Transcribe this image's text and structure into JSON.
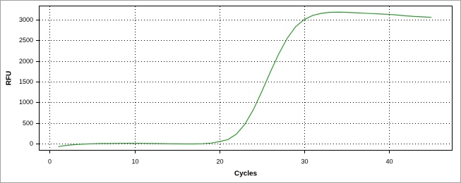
{
  "chart_data": {
    "type": "line",
    "x_label": "Cycles",
    "y_label": "RFU",
    "x": [
      1,
      2,
      3,
      4,
      5,
      6,
      7,
      8,
      9,
      10,
      11,
      12,
      13,
      14,
      15,
      16,
      17,
      18,
      19,
      20,
      21,
      22,
      23,
      24,
      25,
      26,
      27,
      28,
      29,
      30,
      31,
      32,
      33,
      34,
      35,
      36,
      37,
      38,
      39,
      40,
      41,
      42,
      43,
      44,
      45
    ],
    "values": [
      -70,
      -40,
      -20,
      -10,
      0,
      5,
      5,
      8,
      10,
      10,
      8,
      5,
      3,
      0,
      -3,
      -5,
      -5,
      0,
      15,
      50,
      100,
      230,
      470,
      820,
      1260,
      1730,
      2170,
      2550,
      2830,
      3000,
      3100,
      3150,
      3175,
      3180,
      3175,
      3165,
      3155,
      3145,
      3135,
      3125,
      3110,
      3090,
      3075,
      3065,
      3055
    ],
    "color": "#2e9a2e",
    "xlim": [
      -1.2,
      47.4
    ],
    "ylim": [
      -150,
      3320
    ],
    "xticks": [
      0,
      10,
      20,
      30,
      40
    ],
    "yticks": [
      0,
      500,
      1000,
      1500,
      2000,
      2500,
      3000
    ],
    "grid": true
  }
}
